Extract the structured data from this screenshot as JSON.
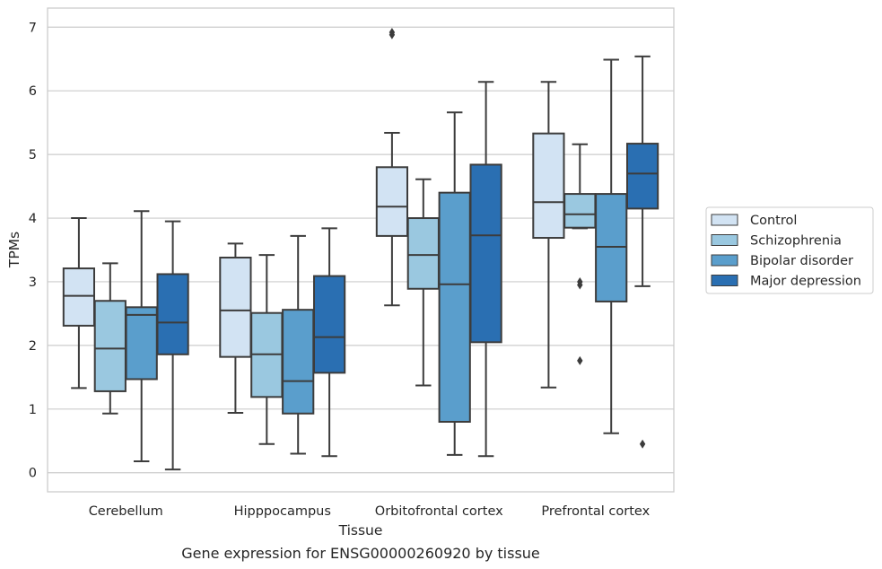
{
  "caption": "Gene expression for ENSG00000260920 by tissue",
  "chart_data": {
    "type": "boxplot",
    "xlabel": "Tissue",
    "ylabel": "TPMs",
    "ylim": [
      -0.3,
      7.3
    ],
    "yticks": [
      0,
      1,
      2,
      3,
      4,
      5,
      6,
      7
    ],
    "grid": "horizontal",
    "legend_position": "right",
    "categories": [
      "Cerebellum",
      "Hipppocampus",
      "Orbitofrontal cortex",
      "Prefrontal cortex"
    ],
    "series": [
      {
        "name": "Control",
        "color": "#d2e3f3",
        "boxes": [
          {
            "whislo": 1.33,
            "q1": 2.31,
            "med": 2.78,
            "q3": 3.21,
            "whishi": 4.0,
            "fliers": []
          },
          {
            "whislo": 0.94,
            "q1": 1.82,
            "med": 2.55,
            "q3": 3.38,
            "whishi": 3.6,
            "fliers": []
          },
          {
            "whislo": 2.63,
            "q1": 3.72,
            "med": 4.18,
            "q3": 4.8,
            "whishi": 5.34,
            "fliers": [
              6.88,
              6.92
            ]
          },
          {
            "whislo": 1.34,
            "q1": 3.69,
            "med": 4.25,
            "q3": 5.33,
            "whishi": 6.14,
            "fliers": []
          }
        ]
      },
      {
        "name": "Schizophrenia",
        "color": "#9ac8e0",
        "boxes": [
          {
            "whislo": 0.93,
            "q1": 1.28,
            "med": 1.95,
            "q3": 2.7,
            "whishi": 3.29,
            "fliers": []
          },
          {
            "whislo": 0.45,
            "q1": 1.19,
            "med": 1.86,
            "q3": 2.51,
            "whishi": 3.42,
            "fliers": []
          },
          {
            "whislo": 1.37,
            "q1": 2.89,
            "med": 3.42,
            "q3": 4.0,
            "whishi": 4.61,
            "fliers": []
          },
          {
            "whislo": 3.84,
            "q1": 3.85,
            "med": 4.06,
            "q3": 4.38,
            "whishi": 5.16,
            "fliers": [
              3.0,
              2.95,
              1.76
            ]
          }
        ]
      },
      {
        "name": "Bipolar disorder",
        "color": "#5a9ecc",
        "boxes": [
          {
            "whislo": 0.18,
            "q1": 1.47,
            "med": 2.48,
            "q3": 2.6,
            "whishi": 4.11,
            "fliers": []
          },
          {
            "whislo": 0.3,
            "q1": 0.93,
            "med": 1.44,
            "q3": 2.56,
            "whishi": 3.72,
            "fliers": []
          },
          {
            "whislo": 0.28,
            "q1": 0.8,
            "med": 2.96,
            "q3": 4.4,
            "whishi": 5.66,
            "fliers": []
          },
          {
            "whislo": 0.62,
            "q1": 2.69,
            "med": 3.55,
            "q3": 4.38,
            "whishi": 6.49,
            "fliers": []
          }
        ]
      },
      {
        "name": "Major depression",
        "color": "#2a6fb2",
        "boxes": [
          {
            "whislo": 0.05,
            "q1": 1.86,
            "med": 2.36,
            "q3": 3.12,
            "whishi": 3.95,
            "fliers": []
          },
          {
            "whislo": 0.26,
            "q1": 1.57,
            "med": 2.13,
            "q3": 3.09,
            "whishi": 3.84,
            "fliers": []
          },
          {
            "whislo": 0.26,
            "q1": 2.05,
            "med": 3.73,
            "q3": 4.84,
            "whishi": 6.14,
            "fliers": []
          },
          {
            "whislo": 2.93,
            "q1": 4.15,
            "med": 4.7,
            "q3": 5.17,
            "whishi": 6.54,
            "fliers": [
              0.45
            ]
          }
        ]
      }
    ]
  }
}
